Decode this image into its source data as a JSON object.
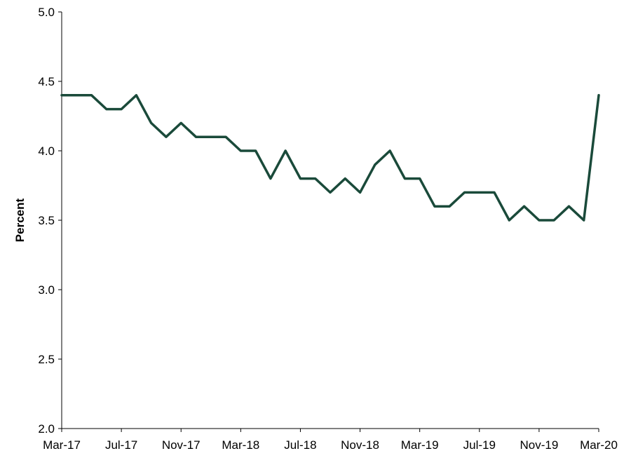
{
  "chart_data": {
    "type": "line",
    "title": "",
    "xlabel": "",
    "ylabel": "Percent",
    "ylim": [
      2.0,
      5.0
    ],
    "yticks": [
      "2.0",
      "2.5",
      "3.0",
      "3.5",
      "4.0",
      "4.5",
      "5.0"
    ],
    "xticks": [
      "Mar-17",
      "Jul-17",
      "Nov-17",
      "Mar-18",
      "Jul-18",
      "Nov-18",
      "Mar-19",
      "Jul-19",
      "Nov-19",
      "Mar-20"
    ],
    "grid": false,
    "legend": "none",
    "line_color": "#1a4a3a",
    "x": [
      "Mar-17",
      "Apr-17",
      "May-17",
      "Jun-17",
      "Jul-17",
      "Aug-17",
      "Sep-17",
      "Oct-17",
      "Nov-17",
      "Dec-17",
      "Jan-18",
      "Feb-18",
      "Mar-18",
      "Apr-18",
      "May-18",
      "Jun-18",
      "Jul-18",
      "Aug-18",
      "Sep-18",
      "Oct-18",
      "Nov-18",
      "Dec-18",
      "Jan-19",
      "Feb-19",
      "Mar-19",
      "Apr-19",
      "May-19",
      "Jun-19",
      "Jul-19",
      "Aug-19",
      "Sep-19",
      "Oct-19",
      "Nov-19",
      "Dec-19",
      "Jan-20",
      "Feb-20",
      "Mar-20"
    ],
    "series": [
      {
        "values": [
          4.4,
          4.4,
          4.4,
          4.3,
          4.3,
          4.4,
          4.2,
          4.1,
          4.2,
          4.1,
          4.1,
          4.1,
          4.0,
          4.0,
          3.8,
          4.0,
          3.8,
          3.8,
          3.7,
          3.8,
          3.7,
          3.9,
          4.0,
          3.8,
          3.8,
          3.6,
          3.6,
          3.7,
          3.7,
          3.7,
          3.5,
          3.6,
          3.5,
          3.5,
          3.6,
          3.5,
          4.4
        ]
      }
    ]
  }
}
